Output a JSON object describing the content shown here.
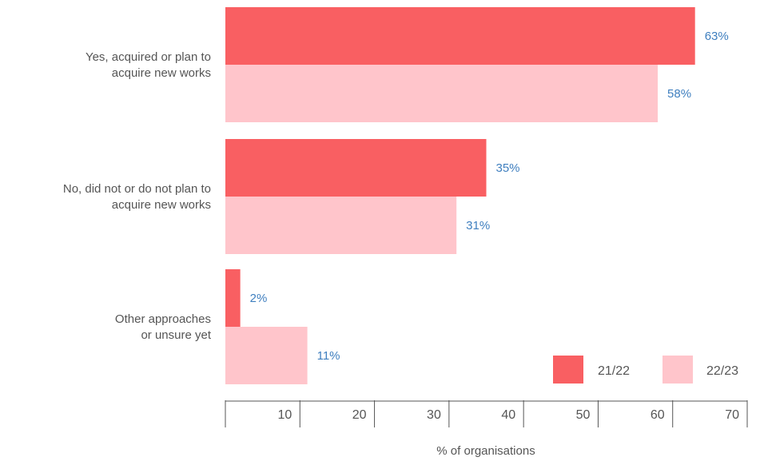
{
  "chart_data": {
    "type": "bar",
    "orientation": "horizontal",
    "categories": [
      [
        "Yes, acquired or plan to",
        "acquire new works"
      ],
      [
        "No, did not or do not plan to",
        "acquire new works"
      ],
      [
        "Other approaches",
        "or unsure yet"
      ]
    ],
    "series": [
      {
        "name": "21/22",
        "values": [
          63,
          35,
          2
        ],
        "color": "#f95f62"
      },
      {
        "name": "22/23",
        "values": [
          58,
          31,
          11
        ],
        "color": "#ffc5cb"
      }
    ],
    "value_labels": {
      "21/22": [
        "63%",
        "35%",
        "2%"
      ],
      "22/23": [
        "58%",
        "31%",
        "11%"
      ]
    },
    "value_label_color": "#3f7fbf",
    "xticks": [
      "10",
      "20",
      "30",
      "40",
      "50",
      "60",
      "70"
    ],
    "xlim": [
      0,
      70
    ],
    "xlabel": "% of organisations",
    "grid": false,
    "legend_position": "bottom-right"
  }
}
